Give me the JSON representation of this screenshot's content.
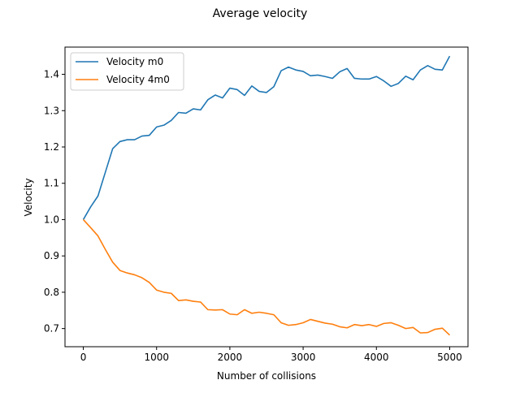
{
  "chart_data": {
    "type": "line",
    "title": "Average velocity",
    "xlabel": "Number of collisions",
    "ylabel": "Velocity",
    "xlim": [
      -250,
      5250
    ],
    "ylim": [
      0.65,
      1.475
    ],
    "xticks": [
      0,
      1000,
      2000,
      3000,
      4000,
      5000
    ],
    "xtick_labels": [
      "0",
      "1000",
      "2000",
      "3000",
      "4000",
      "5000"
    ],
    "yticks": [
      0.7,
      0.8,
      0.9,
      1.0,
      1.1,
      1.2,
      1.3,
      1.4
    ],
    "ytick_labels": [
      "0.7",
      "0.8",
      "0.9",
      "1.0",
      "1.1",
      "1.2",
      "1.3",
      "1.4"
    ],
    "grid": false,
    "legend_position": "upper-left",
    "x": [
      0,
      100,
      200,
      300,
      400,
      500,
      600,
      700,
      800,
      900,
      1000,
      1100,
      1200,
      1300,
      1400,
      1500,
      1600,
      1700,
      1800,
      1900,
      2000,
      2100,
      2200,
      2300,
      2400,
      2500,
      2600,
      2700,
      2800,
      2900,
      3000,
      3100,
      3200,
      3300,
      3400,
      3500,
      3600,
      3700,
      3800,
      3900,
      4000,
      4100,
      4200,
      4300,
      4400,
      4500,
      4600,
      4700,
      4800,
      4900,
      5000
    ],
    "series": [
      {
        "name": "Velocity m0",
        "color": "#1f77b4",
        "values": [
          1.0,
          1.035,
          1.065,
          1.13,
          1.195,
          1.215,
          1.22,
          1.22,
          1.23,
          1.232,
          1.255,
          1.26,
          1.273,
          1.295,
          1.293,
          1.305,
          1.302,
          1.33,
          1.343,
          1.335,
          1.362,
          1.358,
          1.342,
          1.368,
          1.353,
          1.35,
          1.366,
          1.41,
          1.42,
          1.412,
          1.408,
          1.396,
          1.398,
          1.394,
          1.389,
          1.407,
          1.416,
          1.389,
          1.387,
          1.387,
          1.394,
          1.382,
          1.367,
          1.375,
          1.395,
          1.385,
          1.412,
          1.424,
          1.414,
          1.412,
          1.45
        ]
      },
      {
        "name": "Velocity 4m0",
        "color": "#ff7f0e",
        "values": [
          1.0,
          0.978,
          0.955,
          0.918,
          0.883,
          0.86,
          0.853,
          0.848,
          0.84,
          0.827,
          0.806,
          0.8,
          0.797,
          0.777,
          0.779,
          0.775,
          0.773,
          0.752,
          0.751,
          0.752,
          0.74,
          0.738,
          0.752,
          0.742,
          0.745,
          0.742,
          0.738,
          0.716,
          0.709,
          0.711,
          0.716,
          0.725,
          0.72,
          0.715,
          0.712,
          0.705,
          0.702,
          0.711,
          0.708,
          0.711,
          0.706,
          0.714,
          0.716,
          0.709,
          0.7,
          0.703,
          0.688,
          0.689,
          0.698,
          0.701,
          0.682
        ]
      }
    ]
  }
}
